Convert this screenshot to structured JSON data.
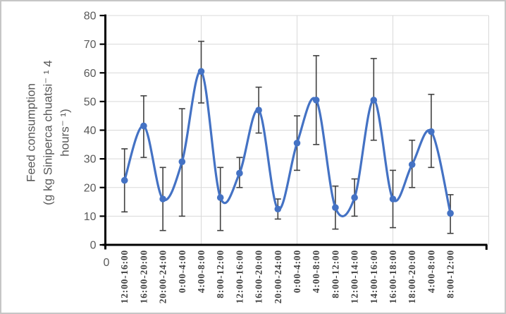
{
  "chart_data": {
    "type": "line",
    "title": "",
    "ylabel_lines": [
      "Feed consumption",
      "(g kg Siniperca chuatsi⁻ ¹ 4",
      "hours⁻ ¹)"
    ],
    "origin_label": "0",
    "categories": [
      "12:00-16:00",
      "16:00-20:00",
      "20:00-24:00",
      "0:00-4:00",
      "4:00-8:00",
      "8:00-12:00",
      "12:00-16:00",
      "16:00-20:00",
      "20:00-24:00",
      "0:00-4:00",
      "4:00-8:00",
      "8:00-12:00",
      "12:00-14:00",
      "14:00-16:00",
      "16:00-18:00",
      "18:00-20:00",
      "4:00-8:00",
      "8:00-12:00"
    ],
    "series": [
      {
        "name": "feed-consumption",
        "values": [
          22.5,
          41.5,
          16,
          29,
          60.5,
          16.5,
          25,
          47,
          12.5,
          35.5,
          50.5,
          13,
          16.5,
          50.5,
          16,
          28,
          39.5,
          11
        ],
        "error_high": [
          33.5,
          52,
          27,
          47.5,
          71,
          27,
          30.5,
          55,
          16,
          45,
          66,
          20.5,
          23,
          65,
          26,
          36.5,
          52.5,
          17.5
        ],
        "error_low": [
          11.5,
          30.5,
          5,
          10,
          49.5,
          5,
          20,
          39,
          9,
          26,
          35,
          5.5,
          10,
          36.5,
          6,
          20,
          27,
          4
        ]
      }
    ],
    "ylim": [
      0,
      80
    ],
    "yticks": [
      0,
      10,
      20,
      30,
      40,
      50,
      60,
      70,
      80
    ],
    "x_axis_units": 20,
    "x_major_gridline_units": [
      5,
      10,
      15,
      20
    ],
    "grid": "on",
    "legend": "none",
    "colors": {
      "line": "#4472C4",
      "marker": "#4472C4",
      "error_bar": "#404040",
      "gridline": "#D9D9D9",
      "axis": "#000000",
      "y_tick_label": "#595959",
      "x_tick_label": "#3F3F3F",
      "axis_title": "#595959",
      "background": "#FFFFFF"
    }
  }
}
